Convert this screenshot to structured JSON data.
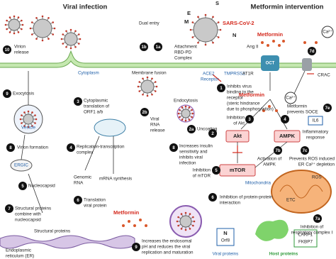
{
  "header": {
    "left": "Viral infection",
    "right": "Metformin intervention"
  },
  "labels": [
    "Virion",
    "release",
    "Dual entry",
    "SARS-CoV-2",
    "S",
    "E",
    "M",
    "N",
    "Attachment",
    "RBD-PD",
    "Complex",
    "ACE2",
    "Receptor",
    "TMPRSS2",
    "Ang II",
    "AT1R",
    "OCT",
    "Metformin",
    "Cytoplasm",
    "Membrane fusion",
    "Viral",
    "RNA",
    "release",
    "Cytoplasmic",
    "translation of",
    "ORF1 a/b",
    "Endocytosis",
    "Uncoating",
    "Exocytosis",
    "Vesicle",
    "Virion formation",
    "ERGIC",
    "Nucleocapsid",
    "Replication-transcription",
    "complex",
    "Genomic",
    "RNA",
    "mRNA synthesis",
    "Translation",
    "viral protein",
    "Structural proteins",
    "combine with",
    "nucleocapsid",
    "Structural proteins",
    "Endoplasmic",
    "reticulum (ER)",
    "Inhibits virus",
    "binding to the",
    "receptor",
    "(steric hindrance",
    "due to phosphorylation)",
    "Metformin",
    "Inhibition",
    "of Akt",
    "Akt",
    "AMPK",
    "Increases insulin",
    "sensitivity and",
    "inhibits viral",
    "infection",
    "Inhibition",
    "of mTOR",
    "mTOR",
    "Mitochondria",
    "Activation of",
    "AMPK",
    "Inhibition of protein-protein",
    "interaction",
    "ROS",
    "ETC",
    "Inhibition of",
    "respiratory complex I",
    "Metformin",
    "Increases the endosomal",
    "pH and reduces the viral",
    "replication and maturation",
    "N",
    "Orf8",
    "Viral proteins",
    "Host proteins",
    "LARP1",
    "FKBP7",
    "CRAC",
    "Ca²⁺",
    "Ca²⁺",
    "Metformin",
    "prevents SOCE",
    "IL6",
    "Inflammatory",
    "response",
    "Prevents ROS induced",
    "ER Ca²⁺ depletion"
  ],
  "badges": [
    "10",
    "1b",
    "1a",
    "2b",
    "3",
    "2a",
    "9",
    "8",
    "4",
    "5",
    "6",
    "7",
    "1",
    "3",
    "4",
    "2",
    "5",
    "6",
    "7a",
    "7b",
    "7c",
    "7d",
    "7e",
    "8",
    "9"
  ]
}
